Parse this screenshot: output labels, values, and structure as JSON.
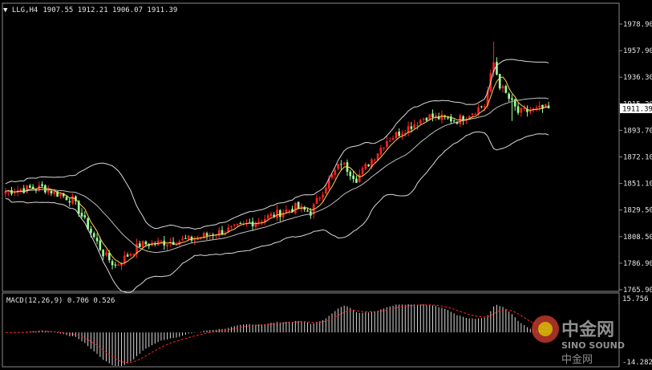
{
  "header": {
    "symbol": "LLG,H4",
    "ohlc": "1907.55 1912.21 1906.07 1911.39"
  },
  "price_scale": {
    "ticks": [
      "1978.90",
      "1957.90",
      "1936.30",
      "1915.20",
      "1893.70",
      "1872.10",
      "1851.10",
      "1829.50",
      "1808.50",
      "1786.90",
      "1765.90"
    ],
    "current": "1911.39"
  },
  "macd_panel": {
    "label": "MACD(12,26,9) 0.706 0.526",
    "ticks": [
      "15.756",
      "-14.282"
    ]
  },
  "watermark": {
    "logo_text": "中金网",
    "brand": "SINO SOUND",
    "slogan": "中金网"
  },
  "colors": {
    "background": "#000000",
    "bull": "#ff2020",
    "bear": "#9aff9a",
    "ma": "#ffd34d",
    "bands": "#d9d9d9",
    "signal": "#ff2020",
    "histogram": "#d9d9d9",
    "current_price_box": "#ffffff"
  },
  "chart_data": {
    "type": "candlestick",
    "panels": [
      "price",
      "macd"
    ],
    "indicators": [
      "Bollinger Bands",
      "Moving Average",
      "MACD(12,26,9)"
    ],
    "y_range": [
      1765.9,
      1990.0
    ],
    "macd_range": [
      -14.282,
      15.756
    ],
    "key_points": [
      {
        "bar": 0,
        "close": 1845
      },
      {
        "bar": 12,
        "close": 1848
      },
      {
        "bar": 22,
        "close": 1838
      },
      {
        "bar": 32,
        "close": 1795
      },
      {
        "bar": 36,
        "close": 1785
      },
      {
        "bar": 44,
        "close": 1802
      },
      {
        "bar": 60,
        "close": 1806
      },
      {
        "bar": 75,
        "close": 1815
      },
      {
        "bar": 95,
        "close": 1832
      },
      {
        "bar": 100,
        "close": 1828
      },
      {
        "bar": 105,
        "close": 1850
      },
      {
        "bar": 110,
        "close": 1868
      },
      {
        "bar": 115,
        "close": 1855
      },
      {
        "bar": 125,
        "close": 1886
      },
      {
        "bar": 138,
        "close": 1905
      },
      {
        "bar": 148,
        "close": 1902
      },
      {
        "bar": 157,
        "close": 1914
      },
      {
        "bar": 160,
        "close": 1948
      },
      {
        "bar": 162,
        "close": 1930
      },
      {
        "bar": 168,
        "close": 1908
      },
      {
        "bar": 178,
        "close": 1911.39
      }
    ]
  }
}
